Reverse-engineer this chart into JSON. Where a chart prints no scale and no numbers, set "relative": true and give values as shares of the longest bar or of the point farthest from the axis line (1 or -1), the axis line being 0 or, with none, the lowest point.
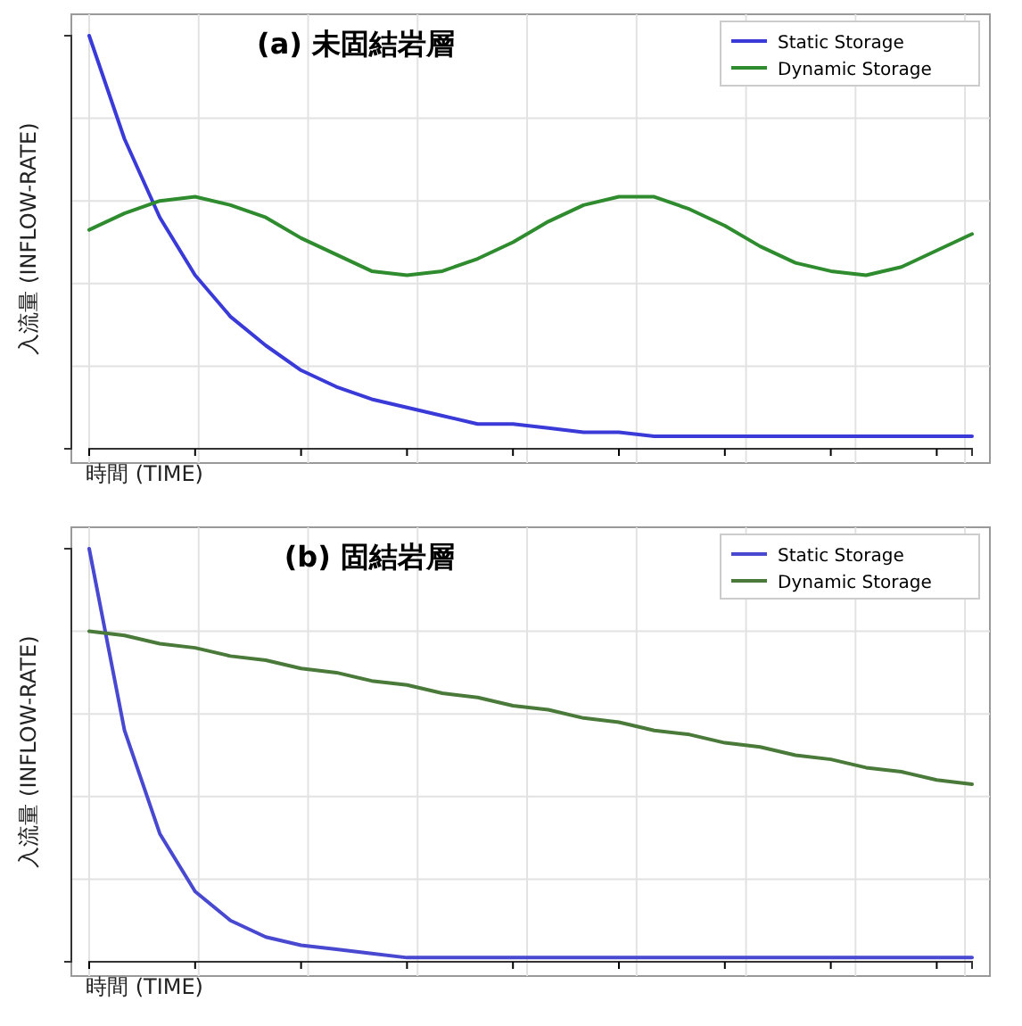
{
  "chart_data": [
    {
      "type": "line",
      "title": "(a) 未固結岩層",
      "xlabel": "時間 (TIME)",
      "ylabel": "入流量 (INFLOW-RATE)",
      "relative": true,
      "grid": true,
      "legend": "top right",
      "categories": [
        null,
        null,
        null,
        null,
        null,
        null,
        null,
        null,
        null,
        null,
        null,
        null,
        null,
        null,
        null,
        null,
        null,
        null,
        null,
        null,
        null,
        null,
        null,
        null,
        null,
        null
      ],
      "series": [
        {
          "name": "Static Storage",
          "color": "#3a3ad8",
          "values": [
            1.0,
            0.75,
            0.56,
            0.42,
            0.32,
            0.25,
            0.19,
            0.15,
            0.12,
            0.1,
            0.08,
            0.06,
            0.06,
            0.05,
            0.04,
            0.04,
            0.03,
            0.03,
            0.03,
            0.03,
            0.03,
            0.03,
            0.03,
            0.03,
            0.03,
            0.03
          ]
        },
        {
          "name": "Dynamic Storage",
          "color": "#2e8b2e",
          "values": [
            0.53,
            0.57,
            0.6,
            0.61,
            0.59,
            0.56,
            0.51,
            0.47,
            0.43,
            0.42,
            0.43,
            0.46,
            0.5,
            0.55,
            0.59,
            0.61,
            0.61,
            0.58,
            0.54,
            0.49,
            0.45,
            0.43,
            0.42,
            0.44,
            0.48,
            0.52
          ]
        }
      ]
    },
    {
      "type": "line",
      "title": "(b) 固結岩層",
      "xlabel": "時間 (TIME)",
      "ylabel": "入流量 (INFLOW-RATE)",
      "relative": true,
      "grid": true,
      "legend": "top right",
      "categories": [
        null,
        null,
        null,
        null,
        null,
        null,
        null,
        null,
        null,
        null,
        null,
        null,
        null,
        null,
        null,
        null,
        null,
        null,
        null,
        null,
        null,
        null,
        null,
        null,
        null,
        null
      ],
      "series": [
        {
          "name": "Static Storage",
          "color": "#4848d0",
          "values": [
            1.0,
            0.56,
            0.31,
            0.17,
            0.1,
            0.06,
            0.04,
            0.03,
            0.02,
            0.01,
            0.01,
            0.01,
            0.01,
            0.01,
            0.01,
            0.01,
            0.01,
            0.01,
            0.01,
            0.01,
            0.01,
            0.01,
            0.01,
            0.01,
            0.01,
            0.01
          ]
        },
        {
          "name": "Dynamic Storage",
          "color": "#4a7a3a",
          "values": [
            0.8,
            0.79,
            0.77,
            0.76,
            0.74,
            0.73,
            0.71,
            0.7,
            0.68,
            0.67,
            0.65,
            0.64,
            0.62,
            0.61,
            0.59,
            0.58,
            0.56,
            0.55,
            0.53,
            0.52,
            0.5,
            0.49,
            0.47,
            0.46,
            0.44,
            0.43
          ]
        }
      ]
    }
  ]
}
